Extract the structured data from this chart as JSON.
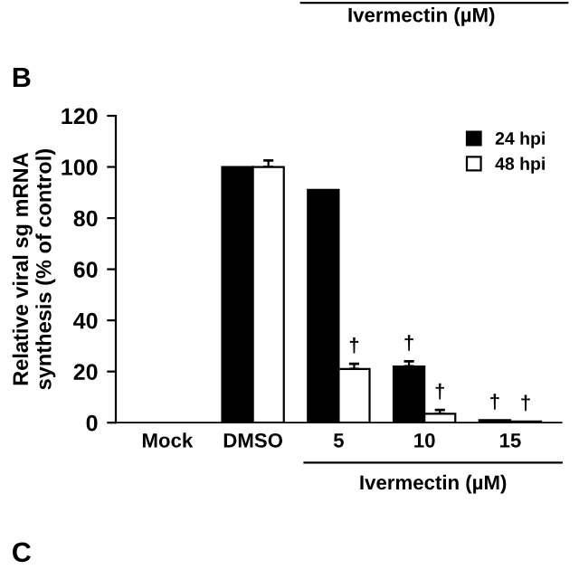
{
  "chart_data": {
    "type": "bar",
    "categories": [
      "Mock",
      "DMSO",
      "5",
      "10",
      "15"
    ],
    "series": [
      {
        "name": "24 hpi",
        "color": "#000000",
        "values": [
          0,
          100,
          91,
          22,
          1
        ],
        "errors": [
          null,
          null,
          null,
          2,
          null
        ]
      },
      {
        "name": "48 hpi",
        "color": "#ffffff",
        "values": [
          0,
          100,
          21,
          3.5,
          0.5
        ],
        "errors": [
          null,
          2.5,
          2,
          1.5,
          null
        ]
      }
    ],
    "ylabel": "Relative viral sg mRNA\nsynthesis (% of control)",
    "xlabel": "Ivermectin (µM)",
    "ylim": [
      0,
      120
    ],
    "yticks": [
      0,
      20,
      40,
      60,
      80,
      100,
      120
    ],
    "annotations": [
      "B",
      "Ivermectin (µM)",
      "C",
      {
        "text": "†",
        "x": "5",
        "y": 21
      },
      {
        "text": "†",
        "x": "10",
        "y": 22
      },
      {
        "text": "†",
        "x": "10",
        "y": 3.5
      },
      {
        "text": "†",
        "x": "15",
        "y": 1
      },
      {
        "text": "†",
        "x": "15",
        "y": 0.5
      }
    ],
    "legend": "top right",
    "grid": false
  }
}
